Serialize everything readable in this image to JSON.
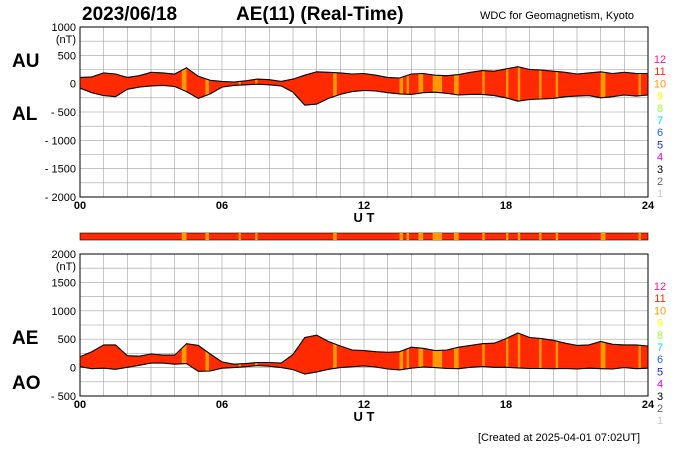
{
  "header": {
    "date": "2023/06/18",
    "title": "AE(11) (Real-Time)",
    "source": "WDC for Geomagnetism, Kyoto"
  },
  "footer": {
    "created": "[Created at 2025-04-01 07:02UT]"
  },
  "labels": {
    "au": "AU",
    "al": "AL",
    "ae": "AE",
    "ao": "AO"
  },
  "station_count_scale": [
    {
      "count": "12",
      "color": "#ff1493"
    },
    {
      "count": "11",
      "color": "#ff2a00"
    },
    {
      "count": "10",
      "color": "#ff9900"
    },
    {
      "count": "9",
      "color": "#ffff00"
    },
    {
      "count": "8",
      "color": "#99ff33"
    },
    {
      "count": "7",
      "color": "#00e5e5"
    },
    {
      "count": "6",
      "color": "#1e64ff"
    },
    {
      "count": "5",
      "color": "#2222cc"
    },
    {
      "count": "4",
      "color": "#ee00ee"
    },
    {
      "count": "3",
      "color": "#000000"
    },
    {
      "count": "2",
      "color": "#666666"
    },
    {
      "count": "1",
      "color": "#c8c8c8"
    }
  ],
  "colors": {
    "fill_11": "#ff2a00",
    "fill_10": "#ff9900",
    "outline": "#000000",
    "grid": "#a0a0a0"
  },
  "chart_data": [
    {
      "type": "area",
      "name": "AU/AL",
      "xlabel": "U T",
      "ylabel": "(nT)",
      "xlim": [
        0,
        24
      ],
      "ylim": [
        -2000,
        1000
      ],
      "xticks": [
        "00",
        "06",
        "12",
        "18",
        "24"
      ],
      "yticks": [
        "1000",
        "500",
        "0",
        "- 500",
        "- 1000",
        "- 1500",
        "- 2000"
      ],
      "grid": true,
      "x": [
        0,
        0.5,
        1,
        1.5,
        2,
        2.5,
        3,
        3.5,
        4,
        4.5,
        5,
        5.5,
        6,
        6.5,
        7,
        7.5,
        8,
        8.5,
        9,
        9.5,
        10,
        10.5,
        11,
        11.5,
        12,
        12.5,
        13,
        13.5,
        14,
        14.5,
        15,
        15.5,
        16,
        16.5,
        17,
        17.5,
        18,
        18.5,
        19,
        19.5,
        20,
        20.5,
        21,
        21.5,
        22,
        22.5,
        23,
        23.5,
        24
      ],
      "series": [
        {
          "name": "AU",
          "values": [
            110,
            120,
            190,
            170,
            110,
            140,
            200,
            190,
            170,
            280,
            130,
            60,
            40,
            30,
            50,
            80,
            70,
            40,
            80,
            150,
            210,
            200,
            190,
            170,
            180,
            150,
            110,
            100,
            170,
            180,
            150,
            140,
            160,
            200,
            230,
            220,
            260,
            300,
            250,
            240,
            220,
            200,
            170,
            190,
            210,
            180,
            200,
            180,
            180
          ]
        },
        {
          "name": "AL",
          "values": [
            -80,
            -160,
            -210,
            -230,
            -100,
            -60,
            -40,
            -30,
            -50,
            -140,
            -260,
            -180,
            -60,
            -30,
            -20,
            -10,
            -20,
            -40,
            -150,
            -380,
            -360,
            -260,
            -190,
            -140,
            -120,
            -130,
            -160,
            -180,
            -190,
            -160,
            -150,
            -170,
            -200,
            -190,
            -190,
            -210,
            -250,
            -310,
            -280,
            -270,
            -260,
            -230,
            -220,
            -210,
            -250,
            -230,
            -200,
            -220,
            -200
          ]
        }
      ]
    },
    {
      "type": "area",
      "name": "AE/AO",
      "xlabel": "U T",
      "ylabel": "(nT)",
      "xlim": [
        0,
        24
      ],
      "ylim": [
        -500,
        2000
      ],
      "xticks": [
        "00",
        "06",
        "12",
        "18",
        "24"
      ],
      "yticks": [
        "2000",
        "1500",
        "1000",
        "500",
        "0",
        "- 500"
      ],
      "grid": true,
      "x": [
        0,
        0.5,
        1,
        1.5,
        2,
        2.5,
        3,
        3.5,
        4,
        4.5,
        5,
        5.5,
        6,
        6.5,
        7,
        7.5,
        8,
        8.5,
        9,
        9.5,
        10,
        10.5,
        11,
        11.5,
        12,
        12.5,
        13,
        13.5,
        14,
        14.5,
        15,
        15.5,
        16,
        16.5,
        17,
        17.5,
        18,
        18.5,
        19,
        19.5,
        20,
        20.5,
        21,
        21.5,
        22,
        22.5,
        23,
        23.5,
        24
      ],
      "series": [
        {
          "name": "AE",
          "values": [
            190,
            280,
            400,
            400,
            210,
            200,
            240,
            220,
            220,
            420,
            390,
            240,
            100,
            60,
            70,
            90,
            90,
            80,
            230,
            530,
            570,
            460,
            380,
            310,
            300,
            280,
            270,
            280,
            360,
            340,
            300,
            310,
            360,
            390,
            420,
            430,
            510,
            610,
            530,
            510,
            480,
            430,
            390,
            400,
            460,
            410,
            400,
            400,
            380
          ]
        },
        {
          "name": "AO",
          "values": [
            15,
            -20,
            -10,
            -30,
            5,
            40,
            80,
            80,
            60,
            70,
            -65,
            -60,
            -10,
            0,
            15,
            35,
            25,
            0,
            -35,
            -115,
            -75,
            -30,
            0,
            15,
            30,
            10,
            -25,
            -40,
            -10,
            10,
            0,
            -15,
            -20,
            5,
            20,
            5,
            5,
            -5,
            -15,
            -15,
            -20,
            -15,
            -25,
            -10,
            -20,
            -25,
            0,
            -20,
            -10
          ]
        }
      ]
    }
  ],
  "station_bands": [
    {
      "start": 4.3,
      "end": 4.5,
      "count": "10"
    },
    {
      "start": 5.3,
      "end": 5.45,
      "count": "10"
    },
    {
      "start": 6.7,
      "end": 6.8,
      "count": "10"
    },
    {
      "start": 7.4,
      "end": 7.5,
      "count": "10"
    },
    {
      "start": 10.7,
      "end": 10.85,
      "count": "10"
    },
    {
      "start": 13.5,
      "end": 13.65,
      "count": "10"
    },
    {
      "start": 13.8,
      "end": 13.9,
      "count": "10"
    },
    {
      "start": 14.3,
      "end": 14.5,
      "count": "10"
    },
    {
      "start": 14.9,
      "end": 15.3,
      "count": "10"
    },
    {
      "start": 15.8,
      "end": 16.0,
      "count": "10"
    },
    {
      "start": 17.0,
      "end": 17.1,
      "count": "10"
    },
    {
      "start": 18.0,
      "end": 18.1,
      "count": "10"
    },
    {
      "start": 18.5,
      "end": 18.6,
      "count": "10"
    },
    {
      "start": 19.4,
      "end": 19.5,
      "count": "10"
    },
    {
      "start": 20.1,
      "end": 20.2,
      "count": "10"
    },
    {
      "start": 22.0,
      "end": 22.2,
      "count": "10"
    },
    {
      "start": 23.6,
      "end": 23.7,
      "count": "10"
    }
  ],
  "axis_font_label": "(nT)"
}
